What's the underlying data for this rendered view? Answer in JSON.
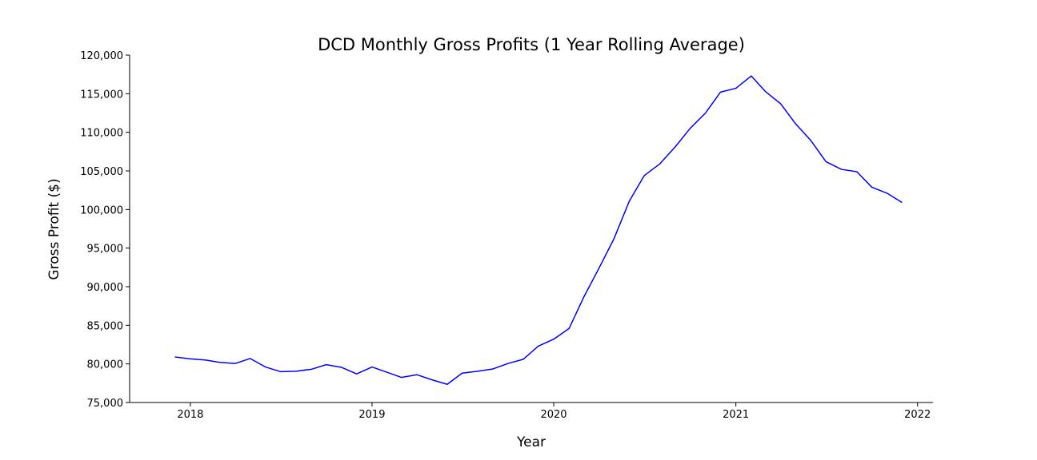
{
  "chart_data": {
    "type": "line",
    "title": "DCD Monthly Gross Profits (1 Year Rolling Average)",
    "xlabel": "Year",
    "ylabel": "Gross Profit ($)",
    "ylim": [
      75000,
      120000
    ],
    "xlim": [
      "2017-09-01",
      "2022-02-01"
    ],
    "x_ticks": [
      "2018",
      "2019",
      "2020",
      "2021",
      "2022"
    ],
    "y_ticks": [
      "75,000",
      "80,000",
      "85,000",
      "90,000",
      "95,000",
      "100,000",
      "105,000",
      "110,000",
      "115,000",
      "120,000"
    ],
    "grid": false,
    "line_color": "#0000ff",
    "series": [
      {
        "x": [
          "2017-12-01",
          "2018-01-01",
          "2018-02-01",
          "2018-03-01",
          "2018-04-01",
          "2018-05-01",
          "2018-06-01",
          "2018-07-01",
          "2018-08-01",
          "2018-09-01",
          "2018-10-01",
          "2018-11-01",
          "2018-12-01",
          "2019-01-01",
          "2019-02-01",
          "2019-03-01",
          "2019-04-01",
          "2019-05-01",
          "2019-06-01",
          "2019-07-01",
          "2019-08-01",
          "2019-09-01",
          "2019-10-01",
          "2019-11-01",
          "2019-12-01",
          "2020-01-01",
          "2020-02-01",
          "2020-03-01",
          "2020-04-01",
          "2020-05-01",
          "2020-06-01",
          "2020-07-01",
          "2020-08-01",
          "2020-09-01",
          "2020-10-01",
          "2020-11-01",
          "2020-12-01",
          "2021-01-01",
          "2021-02-01",
          "2021-03-01",
          "2021-04-01",
          "2021-05-01",
          "2021-06-01",
          "2021-07-01",
          "2021-08-01",
          "2021-09-01",
          "2021-10-01",
          "2021-11-01",
          "2021-12-01"
        ],
        "values": [
          80900,
          80650,
          80500,
          80200,
          80050,
          80700,
          79600,
          79000,
          79050,
          79300,
          79900,
          79550,
          78700,
          79600,
          78900,
          78250,
          78600,
          77950,
          77350,
          78800,
          79050,
          79350,
          80050,
          80600,
          82300,
          83200,
          84600,
          88600,
          92400,
          96200,
          101100,
          104400,
          105900,
          108100,
          110500,
          112500,
          115200,
          115700,
          117300,
          115300,
          113700,
          111100,
          108900,
          106200,
          105200,
          104900,
          102900,
          102100,
          100900
        ]
      }
    ]
  }
}
